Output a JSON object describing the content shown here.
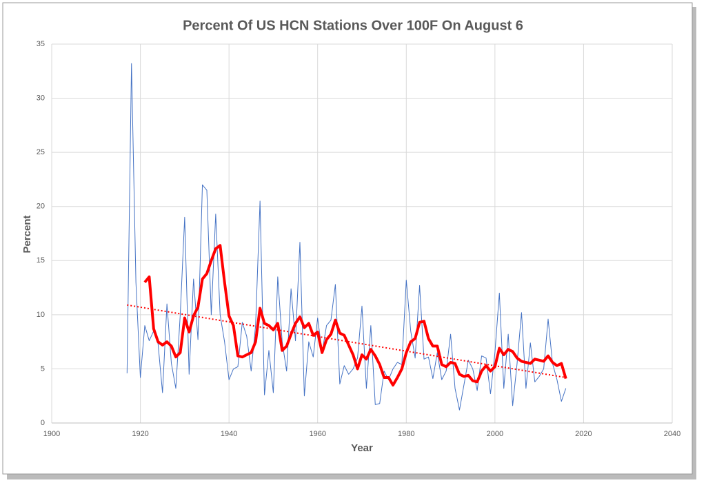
{
  "chart_data": {
    "type": "line",
    "title": "Percent Of US HCN Stations Over 100F On August 6",
    "x_label": "Year",
    "y_label": "Percent",
    "xlim": [
      1900,
      2040
    ],
    "xticks": [
      1900,
      1920,
      1940,
      1960,
      1980,
      2000,
      2020,
      2040
    ],
    "ylim": [
      0,
      35
    ],
    "yticks": [
      0,
      5,
      10,
      15,
      20,
      25,
      30,
      35
    ],
    "grid": true,
    "series": [
      {
        "color": "#4472c4",
        "width": 1,
        "dash": "none",
        "x": [
          1917,
          1918,
          1919,
          1920,
          1921,
          1922,
          1923,
          1924,
          1925,
          1926,
          1927,
          1928,
          1929,
          1930,
          1931,
          1932,
          1933,
          1934,
          1935,
          1936,
          1937,
          1938,
          1939,
          1940,
          1941,
          1942,
          1943,
          1944,
          1945,
          1946,
          1947,
          1948,
          1949,
          1950,
          1951,
          1952,
          1953,
          1954,
          1955,
          1956,
          1957,
          1958,
          1959,
          1960,
          1961,
          1962,
          1963,
          1964,
          1965,
          1966,
          1967,
          1968,
          1969,
          1970,
          1971,
          1972,
          1973,
          1974,
          1975,
          1976,
          1977,
          1978,
          1979,
          1980,
          1981,
          1982,
          1983,
          1984,
          1985,
          1986,
          1987,
          1988,
          1989,
          1990,
          1991,
          1992,
          1993,
          1994,
          1995,
          1996,
          1997,
          1998,
          1999,
          2000,
          2001,
          2002,
          2003,
          2004,
          2005,
          2006,
          2007,
          2008,
          2009,
          2010,
          2011,
          2012,
          2013,
          2014,
          2015,
          2016
        ],
        "values": [
          4.6,
          33.2,
          13,
          4.2,
          9,
          7.6,
          8.5,
          7.3,
          2.8,
          11,
          5.5,
          3.2,
          10,
          19,
          4.5,
          13.3,
          7.7,
          22,
          21.5,
          10,
          19.3,
          10,
          7.5,
          4,
          5,
          5.2,
          9.3,
          8,
          4.8,
          9,
          20.5,
          2.6,
          6.7,
          2.8,
          13.5,
          7.5,
          4.8,
          12.4,
          7.6,
          16.7,
          2.5,
          7.5,
          6.1,
          9.7,
          6.5,
          9,
          9.5,
          12.8,
          3.6,
          5.3,
          4.5,
          5,
          6,
          10.8,
          3.2,
          9,
          1.7,
          1.8,
          4.8,
          4,
          5,
          5.6,
          5.4,
          13.2,
          8.5,
          6,
          12.7,
          5.9,
          6.1,
          4.1,
          6.5,
          4,
          4.8,
          8.2,
          3.2,
          1.2,
          3.5,
          5.8,
          5,
          3,
          6.2,
          6,
          2.7,
          6.5,
          12,
          3.2,
          8.2,
          1.6,
          5.5,
          10.2,
          3.2,
          7.4,
          3.8,
          4.3,
          5,
          9.6,
          5.5,
          4,
          2,
          3.2
        ]
      },
      {
        "color": "#ff0000",
        "width": 4,
        "dash": "none",
        "x": [
          1921,
          1922,
          1923,
          1924,
          1925,
          1926,
          1927,
          1928,
          1929,
          1930,
          1931,
          1932,
          1933,
          1934,
          1935,
          1936,
          1937,
          1938,
          1939,
          1940,
          1941,
          1942,
          1943,
          1944,
          1945,
          1946,
          1947,
          1948,
          1949,
          1950,
          1951,
          1952,
          1953,
          1954,
          1955,
          1956,
          1957,
          1958,
          1959,
          1960,
          1961,
          1962,
          1963,
          1964,
          1965,
          1966,
          1967,
          1968,
          1969,
          1970,
          1971,
          1972,
          1973,
          1974,
          1975,
          1976,
          1977,
          1978,
          1979,
          1980,
          1981,
          1982,
          1983,
          1984,
          1985,
          1986,
          1987,
          1988,
          1989,
          1990,
          1991,
          1992,
          1993,
          1994,
          1995,
          1996,
          1997,
          1998,
          1999,
          2000,
          2001,
          2002,
          2003,
          2004,
          2005,
          2006,
          2007,
          2008,
          2009,
          2010,
          2011,
          2012,
          2013,
          2014,
          2015,
          2016
        ],
        "values": [
          13,
          13.5,
          8.7,
          7.5,
          7.2,
          7.5,
          7.1,
          6.1,
          6.5,
          9.7,
          8.4,
          9.9,
          10.7,
          13.3,
          13.8,
          15,
          16.1,
          16.4,
          13,
          9.9,
          9,
          6.2,
          6.1,
          6.3,
          6.5,
          7.5,
          10.6,
          9.2,
          9,
          8.6,
          9.2,
          6.7,
          7.1,
          8.2,
          9.2,
          9.8,
          8.8,
          9.2,
          8.1,
          8.4,
          6.5,
          7.7,
          8.2,
          9.5,
          8.3,
          8.1,
          7.2,
          6.3,
          5,
          6.3,
          5.9,
          6.8,
          6.2,
          5.4,
          4.2,
          4.2,
          3.5,
          4.2,
          5,
          6.5,
          7.5,
          7.8,
          9.3,
          9.4,
          7.8,
          7.1,
          7.1,
          5.4,
          5.2,
          5.6,
          5.5,
          4.5,
          4.3,
          4.4,
          3.9,
          3.8,
          4.8,
          5.3,
          4.8,
          5.2,
          6.9,
          6.3,
          6.8,
          6.6,
          6,
          5.7,
          5.6,
          5.5,
          5.9,
          5.8,
          5.7,
          6.2,
          5.6,
          5.3,
          5.5,
          4.1
        ]
      },
      {
        "color": "#ff0000",
        "width": 2,
        "dash": "2 3",
        "x": [
          1917,
          2016
        ],
        "values": [
          10.9,
          4.2
        ]
      }
    ]
  }
}
